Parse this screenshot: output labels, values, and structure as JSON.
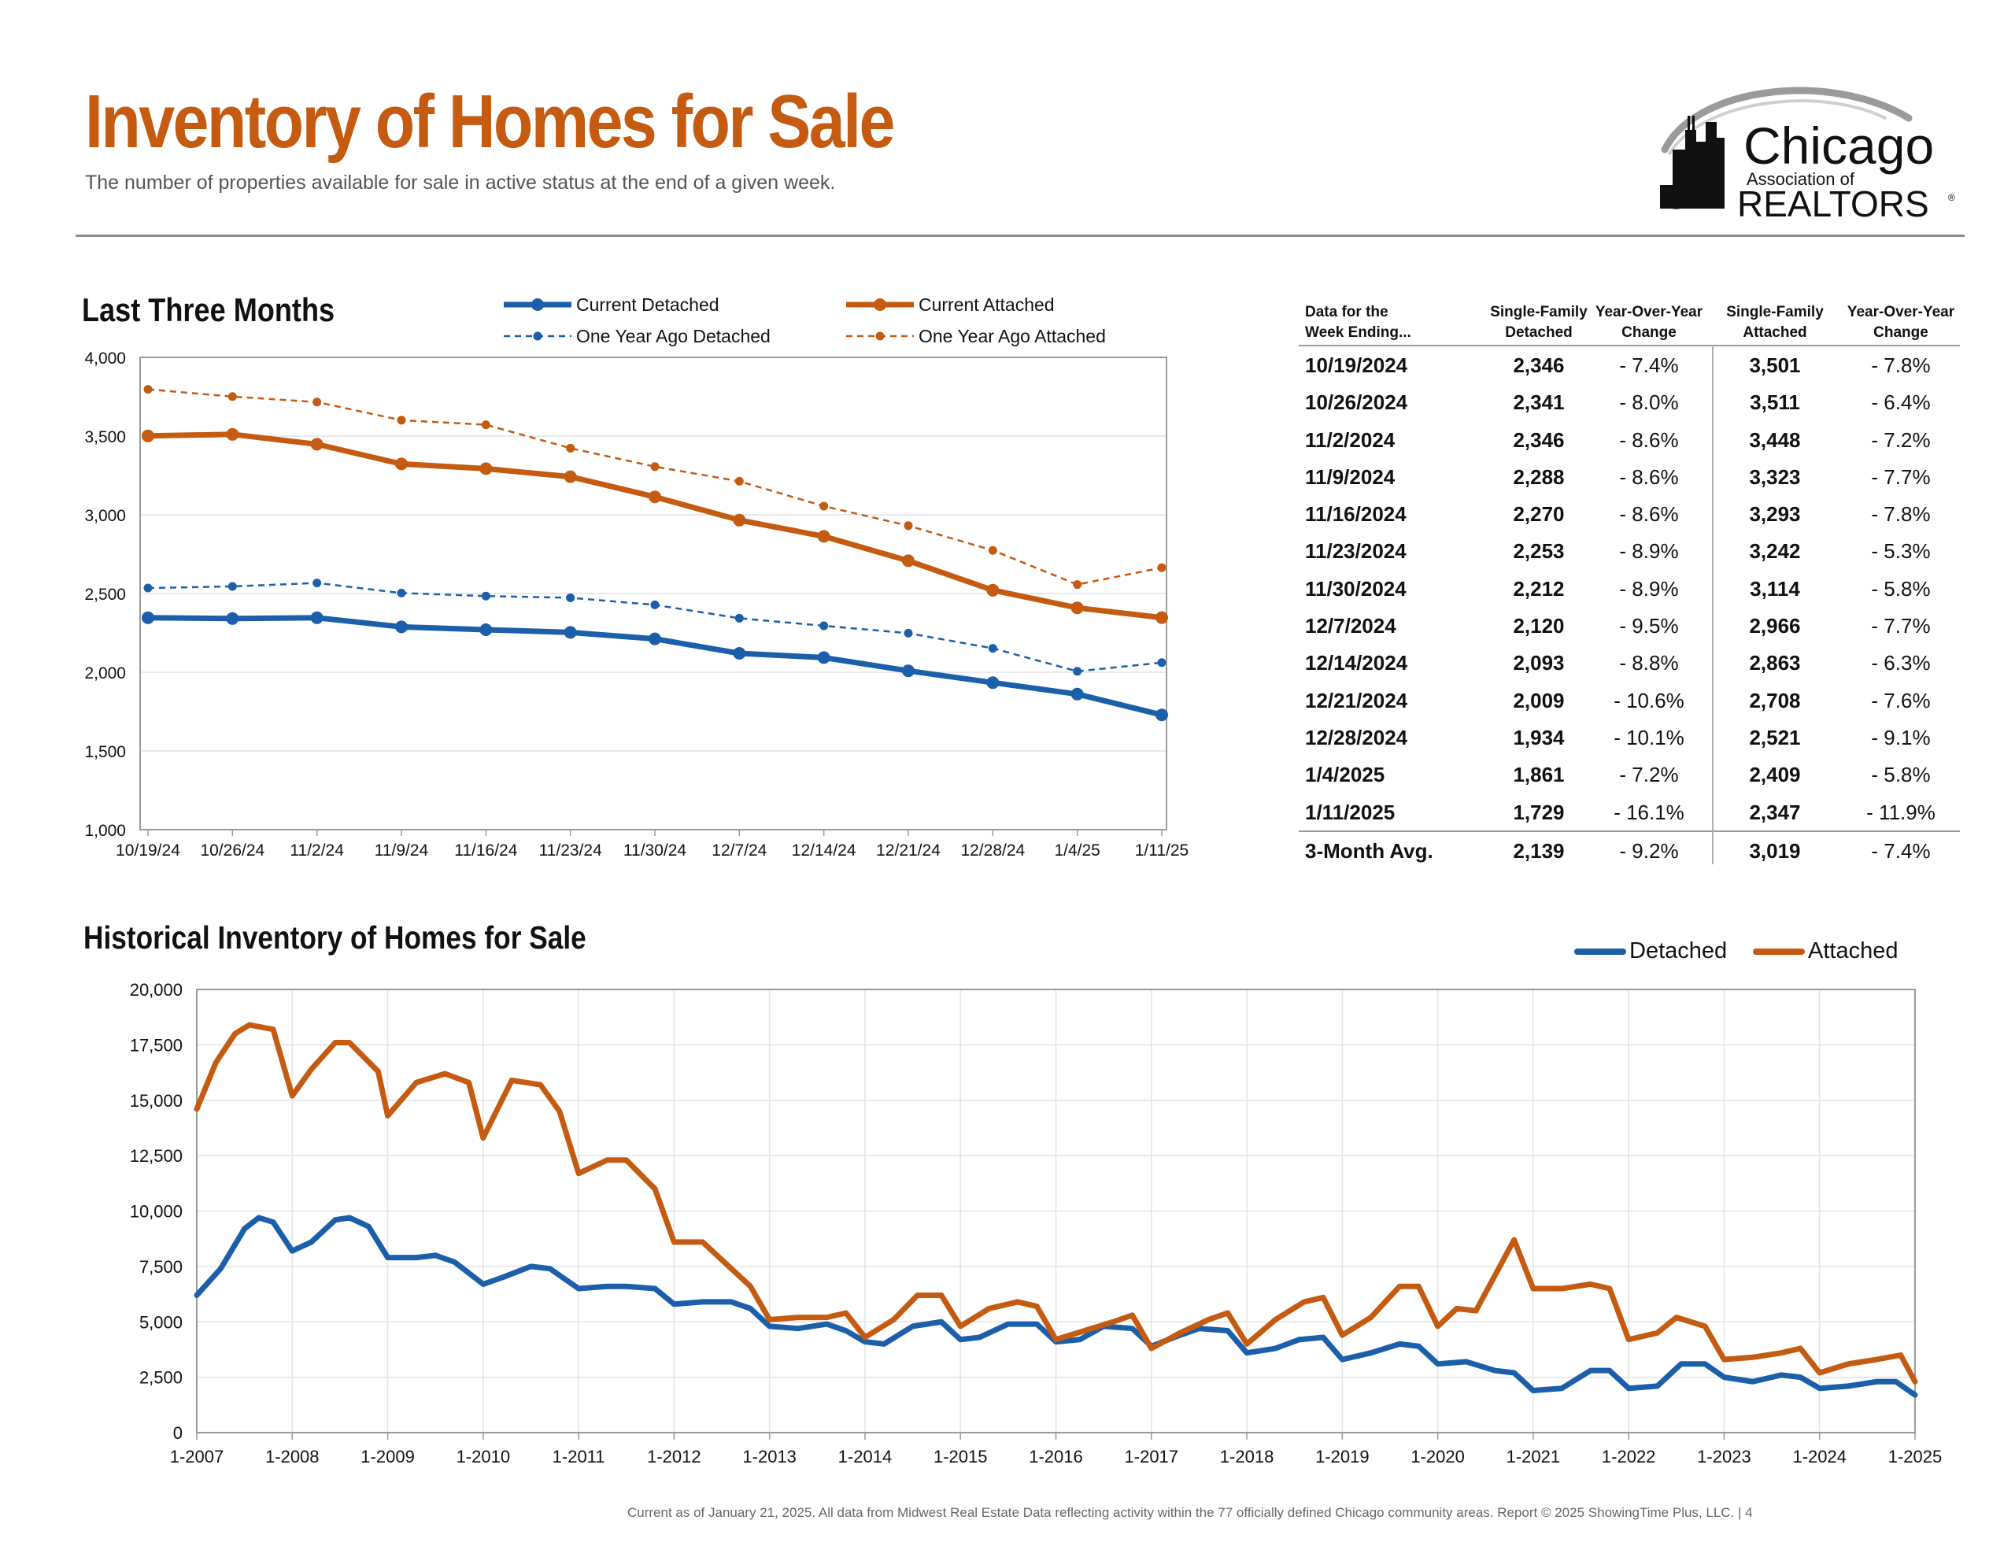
{
  "header": {
    "title": "Inventory of Homes for Sale",
    "subtitle": "The number of properties available for sale in active status at the end of a given week."
  },
  "logo": {
    "line1": "Chicago",
    "line2": "Association of",
    "line3": "REALTORS",
    "mark": "®"
  },
  "colors": {
    "detached": "#1b5faa",
    "attached": "#c55a11",
    "title": "#c55a11"
  },
  "section1": {
    "title": "Last Three Months"
  },
  "section2": {
    "title": "Historical Inventory of Homes for Sale"
  },
  "table": {
    "headers": [
      "Data for the\nWeek Ending...",
      "Single-Family\nDetached",
      "Year-Over-Year\nChange",
      "Single-Family\nAttached",
      "Year-Over-Year\nChange"
    ],
    "rows": [
      [
        "10/19/2024",
        "2,346",
        "- 7.4%",
        "3,501",
        "- 7.8%"
      ],
      [
        "10/26/2024",
        "2,341",
        "- 8.0%",
        "3,511",
        "- 6.4%"
      ],
      [
        "11/2/2024",
        "2,346",
        "- 8.6%",
        "3,448",
        "- 7.2%"
      ],
      [
        "11/9/2024",
        "2,288",
        "- 8.6%",
        "3,323",
        "- 7.7%"
      ],
      [
        "11/16/2024",
        "2,270",
        "- 8.6%",
        "3,293",
        "- 7.8%"
      ],
      [
        "11/23/2024",
        "2,253",
        "- 8.9%",
        "3,242",
        "- 5.3%"
      ],
      [
        "11/30/2024",
        "2,212",
        "- 8.9%",
        "3,114",
        "- 5.8%"
      ],
      [
        "12/7/2024",
        "2,120",
        "- 9.5%",
        "2,966",
        "- 7.7%"
      ],
      [
        "12/14/2024",
        "2,093",
        "- 8.8%",
        "2,863",
        "- 6.3%"
      ],
      [
        "12/21/2024",
        "2,009",
        "- 10.6%",
        "2,708",
        "- 7.6%"
      ],
      [
        "12/28/2024",
        "1,934",
        "- 10.1%",
        "2,521",
        "- 9.1%"
      ],
      [
        "1/4/2025",
        "1,861",
        "- 7.2%",
        "2,409",
        "- 5.8%"
      ],
      [
        "1/11/2025",
        "1,729",
        "- 16.1%",
        "2,347",
        "- 11.9%"
      ]
    ],
    "avg": [
      "3-Month Avg.",
      "2,139",
      "- 9.2%",
      "3,019",
      "- 7.4%"
    ]
  },
  "footer": "Current as of January 21, 2025.  All data from Midwest Real Estate Data reflecting activity within the 77 officially defined Chicago community areas. Report © 2025 ShowingTime Plus, LLC.  |  4",
  "chart_data": [
    {
      "type": "line",
      "title": "Last Three Months",
      "categories": [
        "10/19/24",
        "10/26/24",
        "11/2/24",
        "11/9/24",
        "11/16/24",
        "11/23/24",
        "11/30/24",
        "12/7/24",
        "12/14/24",
        "12/21/24",
        "12/28/24",
        "1/4/25",
        "1/11/25"
      ],
      "ylim": [
        1000,
        4000
      ],
      "yticks": [
        1000,
        1500,
        2000,
        2500,
        3000,
        3500,
        4000
      ],
      "ytick_labels": [
        "1,000",
        "1,500",
        "2,000",
        "2,500",
        "3,000",
        "3,500",
        "4,000"
      ],
      "grid": true,
      "legend": "top",
      "series": [
        {
          "name": "Current Detached",
          "style": "solid",
          "color": "#1b5faa",
          "values": [
            2346,
            2341,
            2346,
            2288,
            2270,
            2253,
            2212,
            2120,
            2093,
            2009,
            1934,
            1861,
            1729
          ]
        },
        {
          "name": "Current Attached",
          "style": "solid",
          "color": "#c55a11",
          "values": [
            3501,
            3511,
            3448,
            3323,
            3293,
            3242,
            3114,
            2966,
            2863,
            2708,
            2521,
            2409,
            2347
          ]
        },
        {
          "name": "One Year Ago Detached",
          "style": "dashed",
          "color": "#1b5faa",
          "values": [
            2535,
            2545,
            2567,
            2503,
            2484,
            2473,
            2428,
            2343,
            2295,
            2248,
            2152,
            2006,
            2061
          ]
        },
        {
          "name": "One Year Ago Attached",
          "style": "dashed",
          "color": "#c55a11",
          "values": [
            3797,
            3751,
            3716,
            3601,
            3572,
            3423,
            3306,
            3213,
            3055,
            2931,
            2774,
            2557,
            2664
          ]
        }
      ]
    },
    {
      "type": "line",
      "title": "Historical Inventory of Homes for Sale",
      "x_ticks": [
        "1-2007",
        "1-2008",
        "1-2009",
        "1-2010",
        "1-2011",
        "1-2012",
        "1-2013",
        "1-2014",
        "1-2015",
        "1-2016",
        "1-2017",
        "1-2018",
        "1-2019",
        "1-2020",
        "1-2021",
        "1-2022",
        "1-2023",
        "1-2024",
        "1-2025"
      ],
      "x_range": [
        2007,
        2025
      ],
      "ylim": [
        0,
        20000
      ],
      "yticks": [
        0,
        2500,
        5000,
        7500,
        10000,
        12500,
        15000,
        17500,
        20000
      ],
      "ytick_labels": [
        "0",
        "2,500",
        "5,000",
        "7,500",
        "10,000",
        "12,500",
        "15,000",
        "17,500",
        "20,000"
      ],
      "grid": true,
      "legend": "top-right",
      "series": [
        {
          "name": "Detached",
          "color": "#1b5faa",
          "x": [
            2007.0,
            2007.25,
            2007.5,
            2007.65,
            2007.8,
            2008.0,
            2008.2,
            2008.45,
            2008.6,
            2008.8,
            2009.0,
            2009.3,
            2009.5,
            2009.7,
            2010.0,
            2010.2,
            2010.5,
            2010.7,
            2011.0,
            2011.3,
            2011.5,
            2011.8,
            2012.0,
            2012.3,
            2012.6,
            2012.8,
            2013.0,
            2013.3,
            2013.6,
            2013.8,
            2014.0,
            2014.2,
            2014.5,
            2014.8,
            2015.0,
            2015.2,
            2015.5,
            2015.8,
            2016.0,
            2016.25,
            2016.5,
            2016.8,
            2017.0,
            2017.3,
            2017.5,
            2017.8,
            2018.0,
            2018.3,
            2018.55,
            2018.8,
            2019.0,
            2019.3,
            2019.6,
            2019.8,
            2020.0,
            2020.3,
            2020.6,
            2020.8,
            2021.0,
            2021.3,
            2021.6,
            2021.8,
            2022.0,
            2022.3,
            2022.55,
            2022.8,
            2023.0,
            2023.3,
            2023.6,
            2023.8,
            2024.0,
            2024.3,
            2024.6,
            2024.8,
            2025.0
          ],
          "values": [
            6200,
            7400,
            9200,
            9700,
            9500,
            8200,
            8600,
            9600,
            9700,
            9300,
            7900,
            7900,
            8000,
            7700,
            6700,
            7000,
            7500,
            7400,
            6500,
            6600,
            6600,
            6500,
            5800,
            5900,
            5900,
            5600,
            4800,
            4700,
            4900,
            4600,
            4100,
            4000,
            4800,
            5000,
            4200,
            4300,
            4900,
            4900,
            4100,
            4200,
            4800,
            4700,
            3900,
            4400,
            4700,
            4600,
            3600,
            3800,
            4200,
            4300,
            3300,
            3600,
            4000,
            3900,
            3100,
            3200,
            2800,
            2700,
            1900,
            2000,
            2800,
            2800,
            2000,
            2100,
            3100,
            3100,
            2500,
            2300,
            2600,
            2500,
            2000,
            2100,
            2300,
            2300,
            1700
          ]
        },
        {
          "name": "Attached",
          "color": "#c55a11",
          "x": [
            2007.0,
            2007.2,
            2007.4,
            2007.55,
            2007.8,
            2008.0,
            2008.2,
            2008.45,
            2008.6,
            2008.9,
            2009.0,
            2009.3,
            2009.6,
            2009.85,
            2010.0,
            2010.3,
            2010.6,
            2010.8,
            2011.0,
            2011.3,
            2011.5,
            2011.8,
            2012.0,
            2012.3,
            2012.5,
            2012.8,
            2013.0,
            2013.3,
            2013.6,
            2013.8,
            2014.0,
            2014.3,
            2014.55,
            2014.8,
            2015.0,
            2015.3,
            2015.6,
            2015.8,
            2016.0,
            2016.3,
            2016.6,
            2016.8,
            2017.0,
            2017.3,
            2017.6,
            2017.8,
            2018.0,
            2018.3,
            2018.6,
            2018.8,
            2019.0,
            2019.3,
            2019.6,
            2019.8,
            2020.0,
            2020.2,
            2020.4,
            2020.6,
            2020.8,
            2021.0,
            2021.3,
            2021.6,
            2021.8,
            2022.0,
            2022.3,
            2022.5,
            2022.8,
            2023.0,
            2023.3,
            2023.6,
            2023.8,
            2024.0,
            2024.3,
            2024.6,
            2024.85,
            2025.0
          ],
          "values": [
            14600,
            16700,
            18000,
            18400,
            18200,
            15200,
            16400,
            17600,
            17600,
            16300,
            14300,
            15800,
            16200,
            15800,
            13300,
            15900,
            15700,
            14500,
            11700,
            12300,
            12300,
            11000,
            8600,
            8600,
            7800,
            6600,
            5100,
            5200,
            5200,
            5400,
            4300,
            5100,
            6200,
            6200,
            4800,
            5600,
            5900,
            5700,
            4200,
            4600,
            5000,
            5300,
            3800,
            4500,
            5100,
            5400,
            4000,
            5100,
            5900,
            6100,
            4400,
            5200,
            6600,
            6600,
            4800,
            5600,
            5500,
            7100,
            8700,
            6500,
            6500,
            6700,
            6500,
            4200,
            4500,
            5200,
            4800,
            3300,
            3400,
            3600,
            3800,
            2700,
            3100,
            3300,
            3500,
            2300
          ]
        }
      ]
    }
  ]
}
